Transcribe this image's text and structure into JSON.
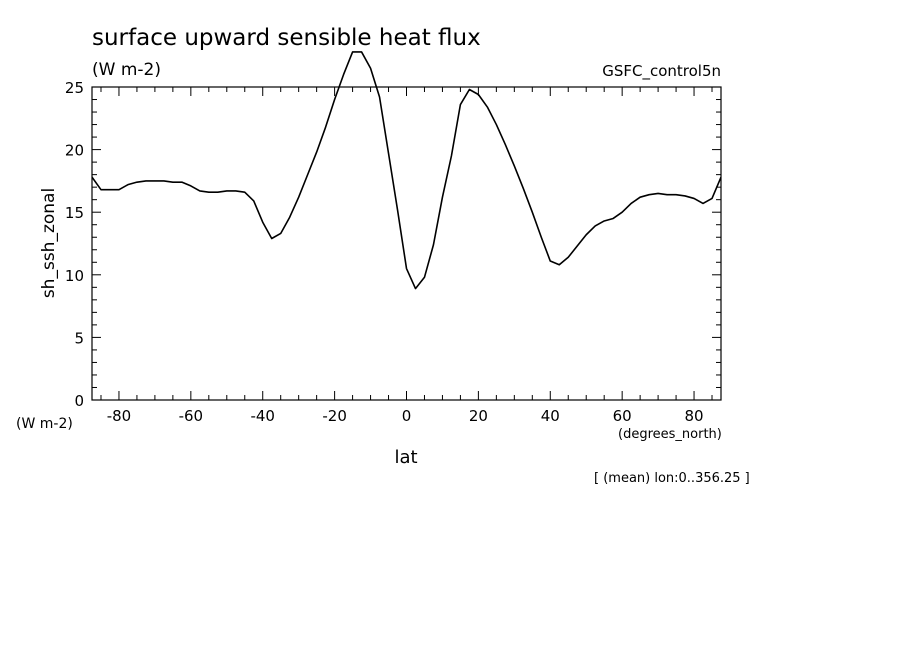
{
  "chart_data": {
    "type": "line",
    "title": "surface upward sensible heat flux",
    "subtitle": "(W m-2)",
    "run_label": "GSFC_control5n",
    "xlabel": "lat",
    "xunits": "(degrees_north)",
    "ylabel": "sh_ssh_zonal",
    "yunits": "(W m-2)",
    "footnote": "[ (mean) lon:0..356.25 ]",
    "xlim": [
      -87.5,
      87.5
    ],
    "ylim": [
      0,
      25
    ],
    "x_ticks": [
      -80,
      -60,
      -40,
      -20,
      0,
      20,
      40,
      60,
      80
    ],
    "x_tick_labels": [
      "-80",
      "-60",
      "-40",
      "-20",
      "0",
      "20",
      "40",
      "60",
      "80"
    ],
    "y_ticks": [
      0,
      5,
      10,
      15,
      20,
      25
    ],
    "y_tick_labels": [
      "0",
      "5",
      "10",
      "15",
      "20",
      "25"
    ],
    "grid": false,
    "line_color": "#000000",
    "series": [
      {
        "x": [
          -87.5,
          -85,
          -82.5,
          -80,
          -77.5,
          -75,
          -72.5,
          -70,
          -67.5,
          -65,
          -62.5,
          -60,
          -57.5,
          -55,
          -52.5,
          -50,
          -47.5,
          -45,
          -42.5,
          -40,
          -37.5,
          -35,
          -32.5,
          -30,
          -27.5,
          -25,
          -22.5,
          -20,
          -17.5,
          -15,
          -12.5,
          -10,
          -7.5,
          -5,
          -2.5,
          0,
          2.5,
          5,
          7.5,
          10,
          12.5,
          15,
          17.5,
          20,
          22.5,
          25,
          27.5,
          30,
          32.5,
          35,
          37.5,
          40,
          42.5,
          45,
          47.5,
          50,
          52.5,
          55,
          57.5,
          60,
          62.5,
          65,
          67.5,
          70,
          72.5,
          75,
          77.5,
          80,
          82.5,
          85,
          87.5
        ],
        "y": [
          17.8,
          16.8,
          16.8,
          16.8,
          17.2,
          17.4,
          17.5,
          17.5,
          17.5,
          17.4,
          17.4,
          17.1,
          16.7,
          16.6,
          16.6,
          16.7,
          16.7,
          16.6,
          15.9,
          14.2,
          12.9,
          13.3,
          14.6,
          16.2,
          18.0,
          19.8,
          21.8,
          24.0,
          26.0,
          27.8,
          27.8,
          26.5,
          24.2,
          19.7,
          15.2,
          10.5,
          8.9,
          9.8,
          12.4,
          16.2,
          19.5,
          23.6,
          24.8,
          24.4,
          23.4,
          22.0,
          20.4,
          18.7,
          16.9,
          15.0,
          13.0,
          11.1,
          10.8,
          11.4,
          12.3,
          13.2,
          13.9,
          14.3,
          14.5,
          15.0,
          15.7,
          16.2,
          16.4,
          16.5,
          16.4,
          16.4,
          16.3,
          16.1,
          15.7,
          16.1,
          17.8
        ]
      }
    ]
  }
}
